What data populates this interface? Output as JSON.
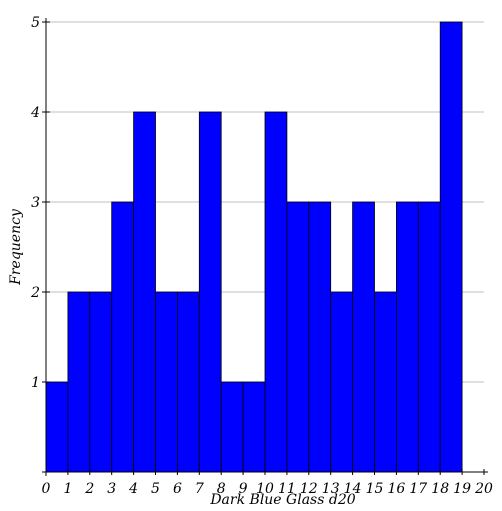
{
  "chart_data": {
    "type": "bar",
    "xlabel": "Dark Blue Glass d20",
    "ylabel": "Frequency",
    "xlim": [
      0,
      20
    ],
    "ylim": [
      0,
      5
    ],
    "x_ticks": [
      "0",
      "1",
      "2",
      "3",
      "4",
      "5",
      "6",
      "7",
      "8",
      "9",
      "10",
      "11",
      "12",
      "13",
      "14",
      "15",
      "16",
      "17",
      "18",
      "19",
      "20"
    ],
    "y_ticks": [
      "1",
      "2",
      "3",
      "4",
      "5"
    ],
    "grid": true,
    "bins": [
      {
        "start": 0,
        "end": 1,
        "value": 1
      },
      {
        "start": 1,
        "end": 2,
        "value": 2
      },
      {
        "start": 2,
        "end": 3,
        "value": 2
      },
      {
        "start": 3,
        "end": 4,
        "value": 3
      },
      {
        "start": 4,
        "end": 5,
        "value": 4
      },
      {
        "start": 5,
        "end": 6,
        "value": 2
      },
      {
        "start": 6,
        "end": 7,
        "value": 2
      },
      {
        "start": 7,
        "end": 8,
        "value": 4
      },
      {
        "start": 8,
        "end": 9,
        "value": 1
      },
      {
        "start": 9,
        "end": 10,
        "value": 1
      },
      {
        "start": 10,
        "end": 11,
        "value": 4
      },
      {
        "start": 11,
        "end": 12,
        "value": 3
      },
      {
        "start": 12,
        "end": 13,
        "value": 3
      },
      {
        "start": 13,
        "end": 14,
        "value": 2
      },
      {
        "start": 14,
        "end": 15,
        "value": 3
      },
      {
        "start": 15,
        "end": 16,
        "value": 2
      },
      {
        "start": 16,
        "end": 17,
        "value": 3
      },
      {
        "start": 17,
        "end": 18,
        "value": 3
      },
      {
        "start": 18,
        "end": 19,
        "value": 5
      }
    ],
    "bar_color": "#0000ff",
    "bar_edge_color": "#000000",
    "grid_color": "#c0c0c0"
  }
}
